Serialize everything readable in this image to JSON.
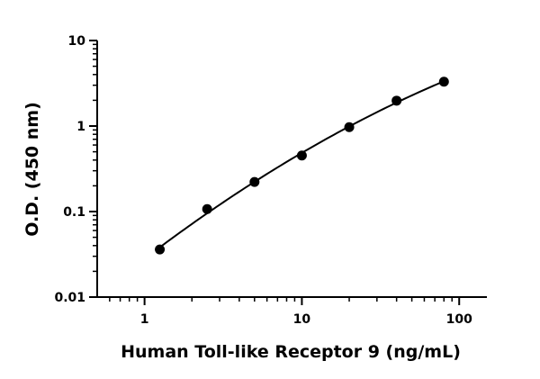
{
  "chart_data": {
    "type": "scatter",
    "xlabel": "Human Toll-like Receptor 9 (ng/mL)",
    "ylabel": "O.D. (450 nm)",
    "x_scale": "log",
    "y_scale": "log",
    "xlim": [
      0.5,
      150
    ],
    "ylim": [
      0.01,
      10
    ],
    "x_ticks": [
      1,
      10,
      100
    ],
    "x_tick_labels": [
      "1",
      "10",
      "100"
    ],
    "y_ticks": [
      0.01,
      0.1,
      1,
      10
    ],
    "y_tick_labels": [
      "0.01",
      "0.1",
      "1",
      "10"
    ],
    "grid": false,
    "legend": "none",
    "series": [
      {
        "x": [
          1.25,
          2.5,
          5,
          10,
          20,
          40,
          80
        ],
        "y": [
          0.036,
          0.107,
          0.222,
          0.452,
          0.97,
          1.98,
          3.3
        ]
      }
    ],
    "fit_curve": true,
    "colors": {
      "points": "#000000",
      "curve": "#000000",
      "axes": "#000000"
    }
  }
}
